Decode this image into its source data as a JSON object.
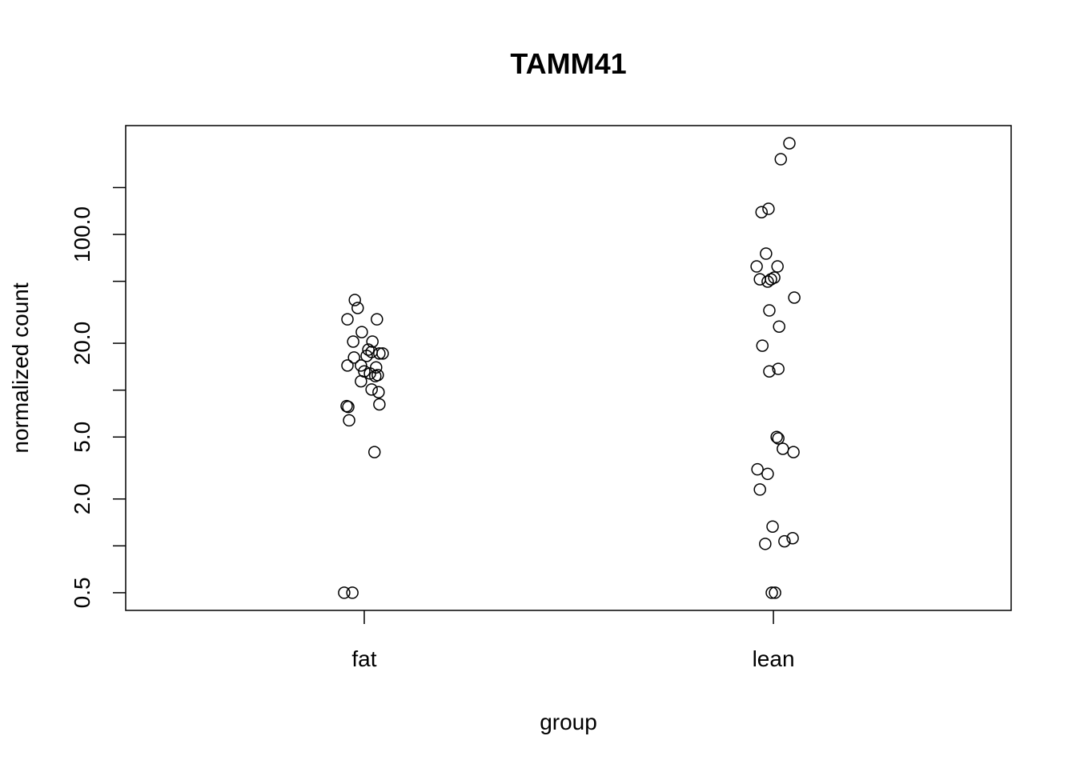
{
  "chart_data": {
    "type": "scatter",
    "title": "TAMM41",
    "x_label": "group",
    "y_label": "normalized count",
    "log_y": true,
    "color": "#000000",
    "marker": "open-circle",
    "xlim": [
      0.417,
      2.581
    ],
    "xticks": [
      {
        "value": 1,
        "label": "fat"
      },
      {
        "value": 2,
        "label": "lean"
      }
    ],
    "ylim": [
      0.385,
      500
    ],
    "yticks": [
      {
        "value": 0.5,
        "label": "0.5"
      },
      {
        "value": 1,
        "label": null
      },
      {
        "value": 2,
        "label": "2.0"
      },
      {
        "value": 5,
        "label": "5.0"
      },
      {
        "value": 10,
        "label": null
      },
      {
        "value": 20,
        "label": "20.0"
      },
      {
        "value": 50,
        "label": null
      },
      {
        "value": 100,
        "label": "100.0"
      },
      {
        "value": 200,
        "label": null
      }
    ],
    "series": [
      {
        "x": [
          0.977,
          0.984,
          0.959,
          1.031,
          0.994,
          0.973,
          1.02,
          1.01,
          1.018,
          1.037,
          1.045,
          0.975,
          1.006,
          0.959,
          0.992,
          1.029,
          1.0,
          1.014,
          1.033,
          1.027,
          0.992,
          1.018,
          1.035,
          0.957,
          0.961,
          1.037,
          0.963,
          1.025,
          0.951,
          0.971
        ],
        "values": [
          37.9,
          33.7,
          28.5,
          28.5,
          23.6,
          20.5,
          20.5,
          18.2,
          17.6,
          17.2,
          17.2,
          16.2,
          16.6,
          14.4,
          14.4,
          14.0,
          13.2,
          12.8,
          12.5,
          12.3,
          11.4,
          10.1,
          9.7,
          7.9,
          7.8,
          8.1,
          6.4,
          4.0,
          0.5,
          0.5
        ]
      },
      {
        "x": [
          2.039,
          2.018,
          1.988,
          1.971,
          1.982,
          1.959,
          2.01,
          1.967,
          2.002,
          1.994,
          1.986,
          2.051,
          1.99,
          2.014,
          1.973,
          2.012,
          1.99,
          2.008,
          2.012,
          2.023,
          2.049,
          1.961,
          1.986,
          1.967,
          1.998,
          2.047,
          2.027,
          1.98,
          1.996,
          2.004
        ],
        "values": [
          385,
          304,
          146,
          139,
          75.3,
          62.3,
          62.3,
          51.5,
          52.8,
          51.5,
          49.8,
          39.3,
          32.5,
          25.6,
          19.3,
          13.7,
          13.2,
          5.0,
          4.9,
          4.2,
          4.0,
          3.1,
          2.9,
          2.3,
          1.33,
          1.12,
          1.07,
          1.03,
          0.5,
          0.5
        ]
      }
    ]
  }
}
